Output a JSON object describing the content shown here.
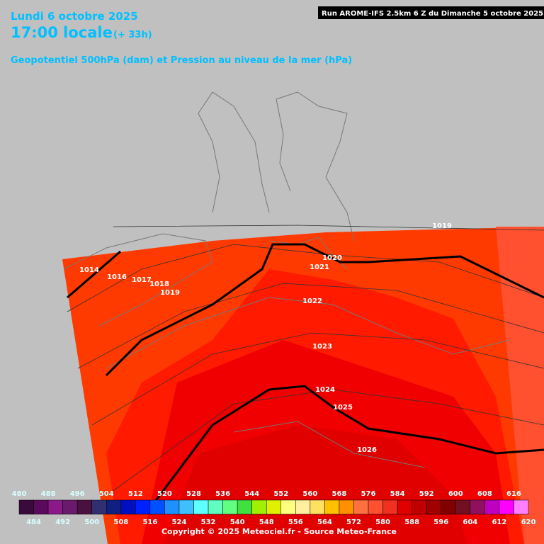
{
  "header": {
    "date": "Lundi 6 octobre 2025",
    "time": "17:00 locale",
    "offset": "(+ 33h)",
    "subtitle": "Geopotentiel 500hPa (dam) et Pression au niveau de la mer (hPa)",
    "run": "Run AROME-IFS 2.5km 6 Z du Dimanche 5 octobre 2025"
  },
  "isobar_labels": [
    "1019",
    "1020",
    "1021",
    "1014",
    "1016",
    "1017",
    "1018",
    "1019",
    "1022",
    "1023",
    "1024",
    "1025",
    "1026"
  ],
  "legend": {
    "top_labels": [
      480,
      488,
      496,
      504,
      512,
      520,
      528,
      536,
      544,
      552,
      560,
      568,
      576,
      584,
      592,
      600,
      608,
      616
    ],
    "bottom_labels": [
      484,
      492,
      500,
      508,
      516,
      524,
      532,
      540,
      548,
      556,
      564,
      572,
      580,
      588,
      596,
      604,
      612,
      620
    ],
    "colors": [
      "#3a0a3a",
      "#5a0a5a",
      "#8a1a8a",
      "#6a1a6a",
      "#4a1040",
      "#303070",
      "#102080",
      "#0010c0",
      "#0020ff",
      "#0050ff",
      "#1e90ff",
      "#40c0ff",
      "#60ffff",
      "#60ffc0",
      "#60ff80",
      "#40e040",
      "#a0f000",
      "#e0f000",
      "#ffff80",
      "#fff0a0",
      "#ffe060",
      "#ffc000",
      "#ff9000",
      "#ff7040",
      "#ff5030",
      "#f03020",
      "#e00000",
      "#c00000",
      "#a00000",
      "#800000",
      "#701020",
      "#901060",
      "#c000c0",
      "#ff00ff",
      "#ff80ff"
    ]
  },
  "copyright": "Copyright © 2025 Meteociel.fr - Source Meteo-France"
}
